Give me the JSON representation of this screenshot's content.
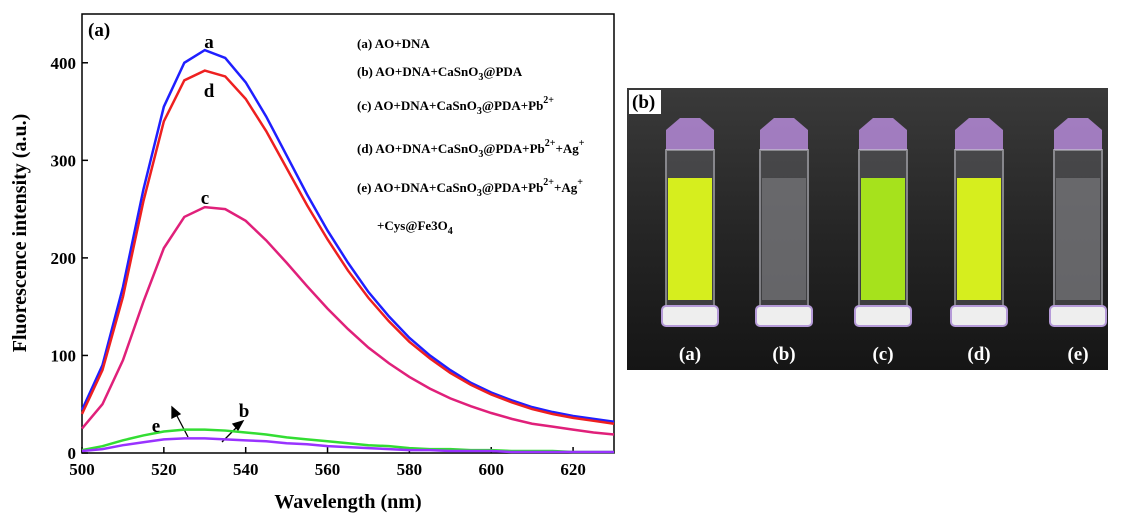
{
  "chart_data": {
    "type": "line",
    "panel_label": "(a)",
    "x_label": "Wavelength (nm)",
    "y_label": "Fluorescence intensity (a.u.)",
    "x": [
      500,
      505,
      510,
      515,
      520,
      525,
      530,
      535,
      540,
      545,
      550,
      555,
      560,
      565,
      570,
      575,
      580,
      585,
      590,
      595,
      600,
      605,
      610,
      615,
      620,
      625,
      630
    ],
    "series": [
      {
        "name": "a",
        "color": "#1f1fff",
        "values": [
          44,
          90,
          170,
          270,
          355,
          400,
          413,
          405,
          380,
          345,
          305,
          265,
          228,
          195,
          165,
          140,
          118,
          100,
          85,
          72,
          62,
          54,
          47,
          42,
          38,
          35,
          32
        ]
      },
      {
        "name": "d",
        "color": "#ee2020",
        "values": [
          40,
          85,
          160,
          258,
          340,
          382,
          392,
          386,
          363,
          330,
          292,
          254,
          219,
          187,
          159,
          135,
          114,
          97,
          82,
          70,
          60,
          52,
          45,
          40,
          36,
          33,
          30
        ]
      },
      {
        "name": "c",
        "color": "#e0207a",
        "values": [
          25,
          50,
          95,
          155,
          210,
          242,
          252,
          250,
          238,
          218,
          195,
          171,
          148,
          127,
          108,
          92,
          78,
          66,
          56,
          48,
          41,
          35,
          30,
          27,
          24,
          21,
          19
        ]
      },
      {
        "name": "e",
        "color": "#33dd33",
        "values": [
          3,
          7,
          13,
          18,
          22,
          24,
          24,
          23,
          21,
          19,
          16,
          14,
          12,
          10,
          8,
          7,
          5,
          4,
          4,
          3,
          3,
          2,
          2,
          2,
          1,
          1,
          1
        ]
      },
      {
        "name": "b",
        "color": "#9933ff",
        "values": [
          2,
          4,
          8,
          11,
          14,
          15,
          15,
          14,
          13,
          12,
          10,
          9,
          7,
          6,
          5,
          4,
          3,
          3,
          2,
          2,
          2,
          1,
          1,
          1,
          1,
          1,
          1
        ]
      }
    ],
    "legend": [
      "(a) AO+DNA",
      "(b) AO+DNA+CaSnO3@PDA",
      "(c) AO+DNA+CaSnO3@PDA+Pb2+",
      "(d) AO+DNA+CaSnO3@PDA+Pb2++Ag+",
      "(e) AO+DNA+CaSnO3@PDA+Pb2++Ag+",
      "+Cys@Fe3O4"
    ],
    "xlim": [
      500,
      630
    ],
    "xticks": [
      500,
      520,
      540,
      560,
      580,
      600,
      620
    ],
    "ylim": [
      0,
      450
    ],
    "yticks": [
      0,
      100,
      200,
      300,
      400
    ],
    "grid": false
  },
  "photo": {
    "label": "(b)",
    "vials": [
      "(a)",
      "(b)",
      "(c)",
      "(d)",
      "(e)"
    ]
  }
}
